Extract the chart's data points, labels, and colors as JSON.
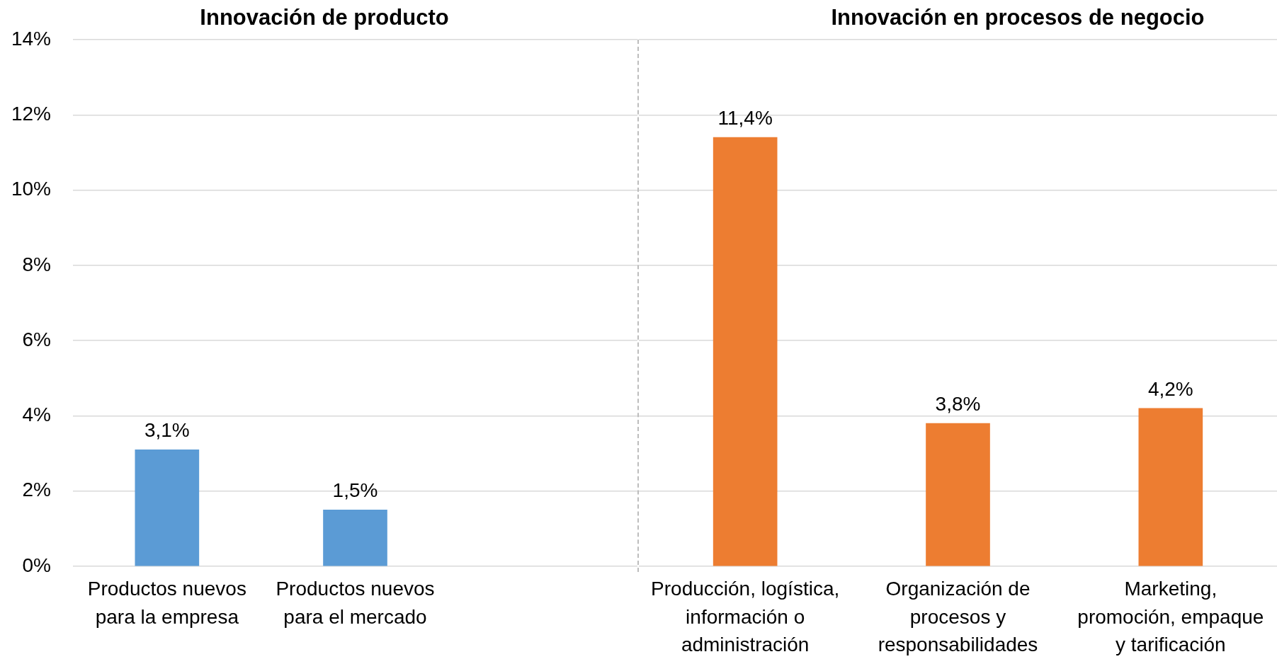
{
  "chart_data": [
    {
      "type": "bar",
      "title": "Innovación de producto",
      "categories": [
        "Productos nuevos para la empresa",
        "Productos nuevos para el mercado",
        null
      ],
      "values": [
        3.1,
        1.5,
        null
      ],
      "color": "#5b9bd5",
      "value_labels": [
        "3,1%",
        "1,5%",
        null
      ],
      "ylim": [
        0,
        14
      ],
      "yticks": [
        {
          "value": 0,
          "label": "0%"
        },
        {
          "value": 2,
          "label": "2%"
        },
        {
          "value": 4,
          "label": "4%"
        },
        {
          "value": 6,
          "label": "6%"
        },
        {
          "value": 8,
          "label": "8%"
        },
        {
          "value": 10,
          "label": "10%"
        },
        {
          "value": 12,
          "label": "12%"
        },
        {
          "value": 14,
          "label": "14%"
        }
      ],
      "grid": "y"
    },
    {
      "type": "bar",
      "title": "Innovación en procesos de negocio",
      "categories": [
        "Producción, logística, información o administración",
        "Organización de procesos y responsabilidades",
        "Marketing, promoción, empaque y tarificación"
      ],
      "values": [
        11.4,
        3.8,
        4.2
      ],
      "color": "#ed7d31",
      "value_labels": [
        "11,4%",
        "3,8%",
        "4,2%"
      ],
      "ylim": [
        0,
        14
      ],
      "yticks": [
        0,
        2,
        4,
        6,
        8,
        10,
        12,
        14
      ],
      "grid": "y",
      "tick_labels": "x"
    }
  ]
}
